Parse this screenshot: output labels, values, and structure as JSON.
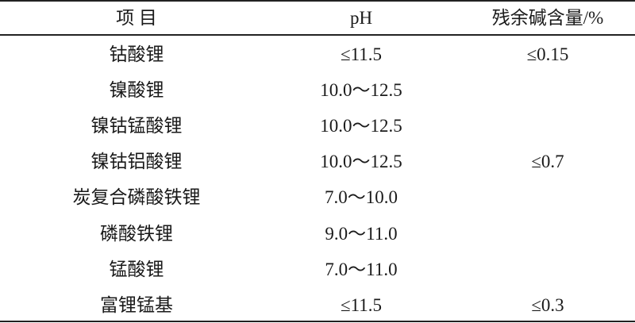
{
  "header": {
    "item": "项 目",
    "ph": "pH",
    "residual_alkali": "残余碱含量/%"
  },
  "rows": [
    {
      "item": "钴酸锂",
      "ph": "≤11.5",
      "residual_alkali": "≤0.15"
    },
    {
      "item": "镍酸锂",
      "ph": "10.0～12.5",
      "residual_alkali": ""
    },
    {
      "item": "镍钴锰酸锂",
      "ph": "10.0～12.5",
      "residual_alkali": ""
    },
    {
      "item": "镍钴铝酸锂",
      "ph": "10.0～12.5",
      "residual_alkali": "≤0.7"
    },
    {
      "item": "炭复合磷酸铁锂",
      "ph": "7.0～10.0",
      "residual_alkali": ""
    },
    {
      "item": "磷酸铁锂",
      "ph": "9.0～11.0",
      "residual_alkali": ""
    },
    {
      "item": "锰酸锂",
      "ph": "7.0～11.0",
      "residual_alkali": ""
    },
    {
      "item": "富锂锰基",
      "ph": "≤11.5",
      "residual_alkali": "≤0.3"
    }
  ]
}
